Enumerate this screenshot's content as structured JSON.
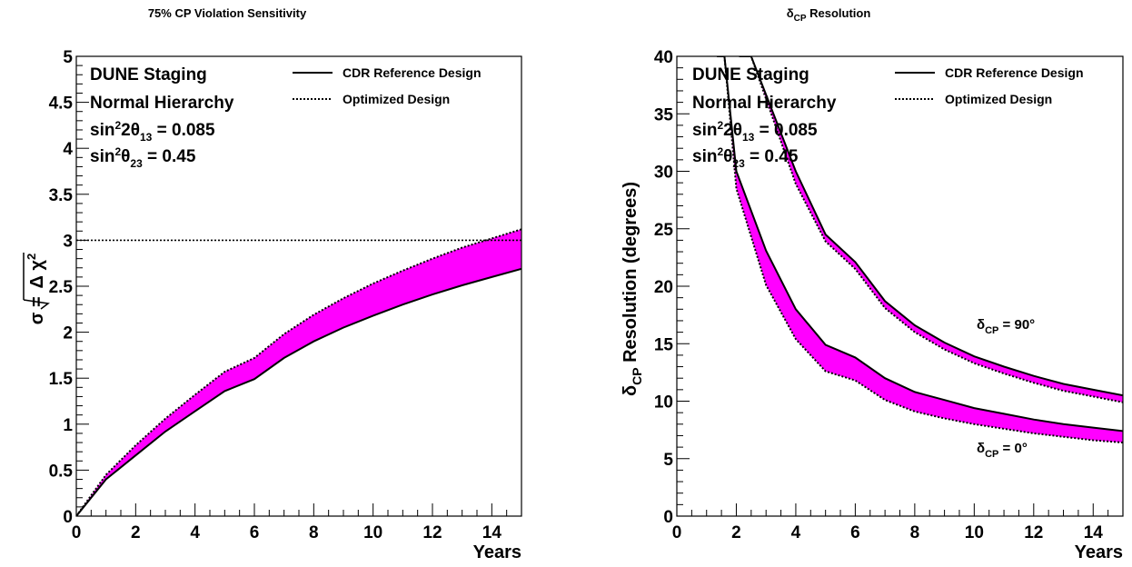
{
  "chart_data": [
    {
      "type": "area",
      "title": "75% CP Violation Sensitivity",
      "xlabel": "Years",
      "ylabel": "σ = √Δχ²",
      "xlim": [
        0,
        15
      ],
      "ylim": [
        0,
        5
      ],
      "x_ticks": [
        0,
        2,
        4,
        6,
        8,
        10,
        12,
        14
      ],
      "y_ticks": [
        0,
        0.5,
        1,
        1.5,
        2,
        2.5,
        3,
        3.5,
        4,
        4.5,
        5
      ],
      "x_tick_labels": [
        "0",
        "2",
        "4",
        "6",
        "8",
        "10",
        "12",
        "14"
      ],
      "y_tick_labels": [
        "0",
        "0.5",
        "1",
        "1.5",
        "2",
        "2.5",
        "3",
        "3.5",
        "4",
        "4.5",
        "5"
      ],
      "reference_line": 3,
      "legend_position": "top-right",
      "fill_color": "#ff00ff",
      "annotations": {
        "line1": "DUNE Staging",
        "line2": "Normal Hierarchy",
        "line3": "sin²2θ₁₃ = 0.085",
        "line4": "sin²θ₂₃ = 0.45"
      },
      "series": [
        {
          "name": "CDR Reference Design",
          "style": "solid",
          "x": [
            0,
            1,
            2,
            3,
            4,
            5,
            6,
            7,
            8,
            9,
            10,
            11,
            12,
            13,
            14,
            15
          ],
          "y": [
            0,
            0.4,
            0.66,
            0.92,
            1.14,
            1.36,
            1.49,
            1.72,
            1.9,
            2.05,
            2.18,
            2.3,
            2.41,
            2.51,
            2.6,
            2.69
          ]
        },
        {
          "name": "Optimized Design",
          "style": "dotted",
          "x": [
            0,
            1,
            2,
            3,
            4,
            5,
            6,
            7,
            8,
            9,
            10,
            11,
            12,
            13,
            14,
            15
          ],
          "y": [
            0,
            0.45,
            0.77,
            1.06,
            1.32,
            1.57,
            1.72,
            1.98,
            2.19,
            2.37,
            2.53,
            2.67,
            2.8,
            2.92,
            3.02,
            3.12
          ]
        }
      ]
    },
    {
      "type": "area",
      "title": "δCP Resolution",
      "xlabel": "Years",
      "ylabel": "δCP Resolution (degrees)",
      "xlim": [
        0,
        15
      ],
      "ylim": [
        0,
        40
      ],
      "x_ticks": [
        0,
        2,
        4,
        6,
        8,
        10,
        12,
        14
      ],
      "y_ticks": [
        0,
        5,
        10,
        15,
        20,
        25,
        30,
        35,
        40
      ],
      "x_tick_labels": [
        "0",
        "2",
        "4",
        "6",
        "8",
        "10",
        "12",
        "14"
      ],
      "y_tick_labels": [
        "0",
        "5",
        "10",
        "15",
        "20",
        "25",
        "30",
        "35",
        "40"
      ],
      "legend_position": "top-right",
      "fill_color": "#ff00ff",
      "annotations": {
        "line1": "DUNE Staging",
        "line2": "Normal Hierarchy",
        "line3": "sin²2θ₁₃ = 0.085",
        "line4": "sin²θ₂₃ = 0.45"
      },
      "curve_labels": {
        "d90": "δCP = 90°",
        "d0": "δCP = 0°"
      },
      "bands": [
        {
          "label": "δCP = 0°",
          "x": [
            1.35,
            1.6,
            2,
            3,
            4,
            5,
            6,
            7,
            8,
            9,
            10,
            11,
            12,
            13,
            14,
            15
          ],
          "cdr": [
            40,
            40,
            30,
            23.1,
            18,
            14.9,
            13.8,
            12,
            10.8,
            10.1,
            9.4,
            8.9,
            8.4,
            8.0,
            7.7,
            7.4
          ],
          "optimized": [
            40,
            40,
            28.5,
            20.1,
            15.4,
            12.6,
            11.8,
            10.1,
            9.1,
            8.5,
            8.0,
            7.6,
            7.2,
            6.9,
            6.6,
            6.4
          ]
        },
        {
          "label": "δCP = 90°",
          "x": [
            2.1,
            2.5,
            4,
            5,
            6,
            7,
            8,
            9,
            10,
            11,
            12,
            13,
            14,
            15
          ],
          "cdr": [
            40,
            40,
            30,
            24.5,
            22.1,
            18.7,
            16.6,
            15.1,
            13.9,
            13.0,
            12.2,
            11.5,
            11.0,
            10.5
          ],
          "optimized": [
            40,
            40,
            28.9,
            23.9,
            21.5,
            18.1,
            16.0,
            14.5,
            13.3,
            12.4,
            11.6,
            10.9,
            10.4,
            9.9
          ]
        }
      ],
      "series": [
        {
          "name": "CDR Reference Design",
          "style": "solid"
        },
        {
          "name": "Optimized Design",
          "style": "dotted"
        }
      ]
    }
  ]
}
